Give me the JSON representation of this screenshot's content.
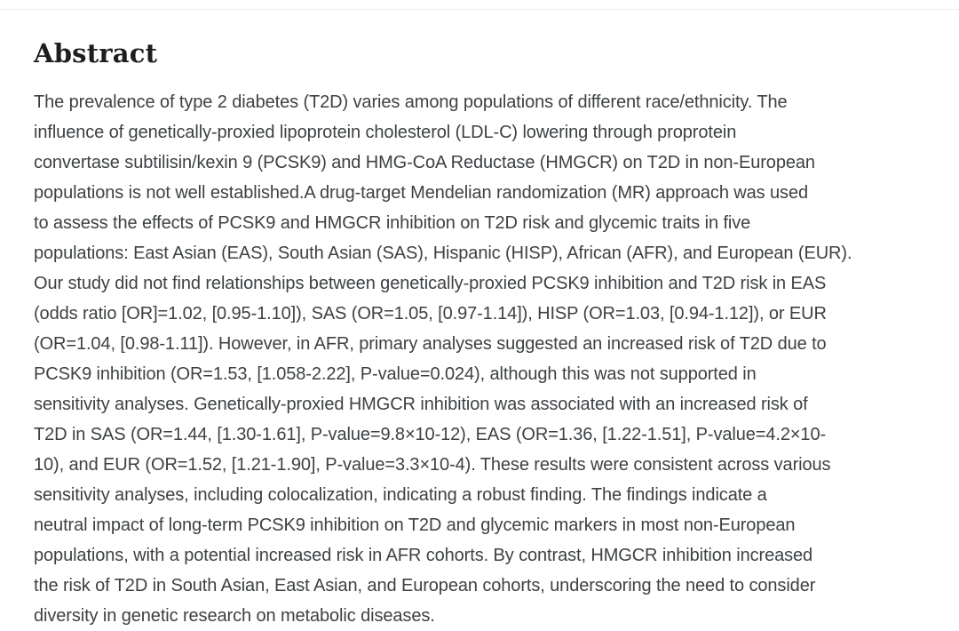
{
  "section": {
    "heading": "Abstract"
  },
  "abstract": {
    "lines": [
      "The prevalence of type 2 diabetes (T2D) varies among populations of different race/ethnicity. The",
      "influence of genetically-proxied lipoprotein cholesterol (LDL-C) lowering through proprotein",
      "convertase subtilisin/kexin 9 (PCSK9) and HMG-CoA Reductase (HMGCR) on T2D in non-European",
      "populations is not well established.A drug-target Mendelian randomization (MR) approach was used",
      "to assess the effects of PCSK9 and HMGCR inhibition on T2D risk and glycemic traits in five",
      "populations: East Asian (EAS), South Asian (SAS), Hispanic (HISP), African (AFR), and European (EUR).",
      "Our study did not find relationships between genetically-proxied PCSK9 inhibition and T2D risk in EAS",
      "(odds ratio [OR]=1.02, [0.95-1.10]), SAS (OR=1.05, [0.97-1.14]), HISP (OR=1.03, [0.94-1.12]), or EUR",
      "(OR=1.04, [0.98-1.11]). However, in AFR, primary analyses suggested an increased risk of T2D due to",
      "PCSK9 inhibition (OR=1.53, [1.058-2.22], P-value=0.024), although this was not supported in",
      "sensitivity analyses. Genetically-proxied HMGCR inhibition was associated with an increased risk of",
      "T2D in SAS (OR=1.44, [1.30-1.61], P-value=9.8×10-12), EAS (OR=1.36, [1.22-1.51], P-value=4.2×10-",
      "10), and EUR (OR=1.52, [1.21-1.90], P-value=3.3×10-4). These results were consistent across various",
      "sensitivity analyses, including colocalization, indicating a robust finding. The findings indicate a",
      "neutral impact of long-term PCSK9 inhibition on T2D and glycemic markers in most non-European",
      "populations, with a potential increased risk in AFR cohorts. By contrast, HMGCR inhibition increased",
      "the risk of T2D in South Asian, East Asian, and European cohorts, underscoring the need to consider",
      "diversity in genetic research on metabolic diseases."
    ]
  },
  "colors": {
    "background": "#ffffff",
    "heading_text": "#1e1e1e",
    "body_text": "#3d4144",
    "divider": "#ececec"
  }
}
